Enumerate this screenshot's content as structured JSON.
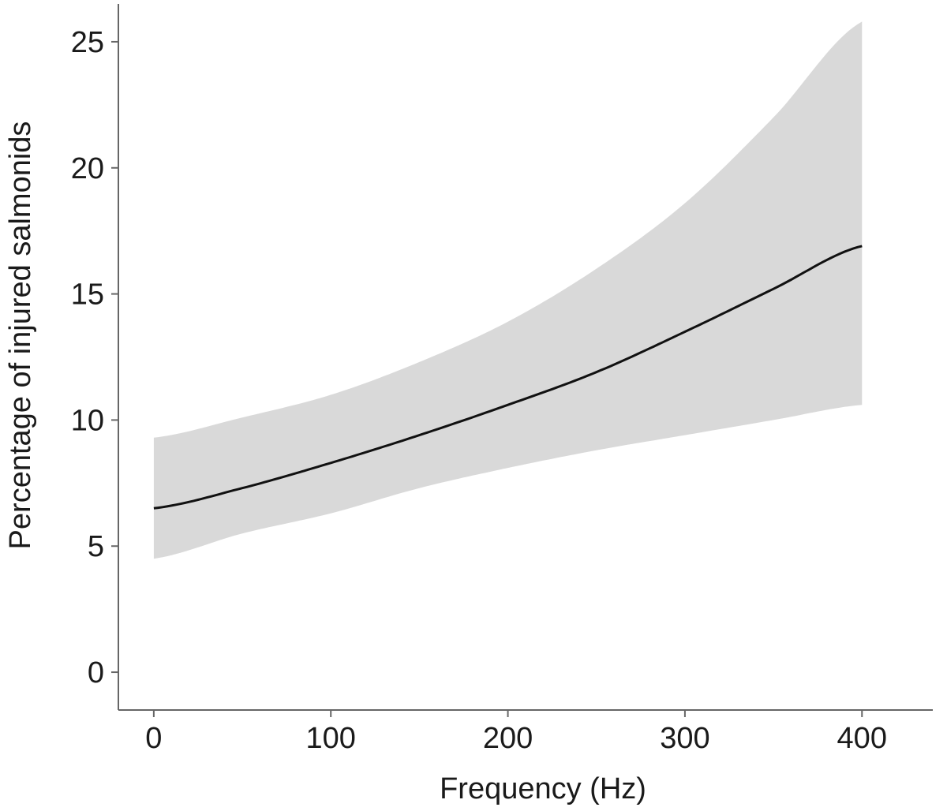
{
  "chart_data": {
    "type": "line",
    "title": "",
    "xlabel": "Frequency (Hz)",
    "ylabel": "Percentage of injured salmonids",
    "xlim": [
      -20,
      440
    ],
    "ylim": [
      -1.5,
      26.5
    ],
    "xticks": [
      0,
      100,
      200,
      300,
      400
    ],
    "yticks": [
      0,
      5,
      10,
      15,
      20,
      25
    ],
    "xtick_labels": [
      "0",
      "100",
      "200",
      "300",
      "400"
    ],
    "ytick_labels": [
      "0",
      "5",
      "10",
      "15",
      "20",
      "25"
    ],
    "grid": false,
    "legend": "none",
    "series": [
      {
        "x": [
          0,
          50,
          100,
          150,
          200,
          250,
          300,
          350,
          400
        ],
        "values": [
          6.5,
          7.3,
          8.3,
          9.4,
          10.6,
          11.9,
          13.5,
          15.2,
          16.9
        ],
        "lower": [
          4.5,
          5.5,
          6.3,
          7.3,
          8.1,
          8.8,
          9.4,
          10.0,
          10.6
        ],
        "upper": [
          9.3,
          10.1,
          11.0,
          12.3,
          13.9,
          16.0,
          18.6,
          22.0,
          25.8
        ]
      }
    ],
    "colors": {
      "line": "#111111",
      "band": "#d9d9d9",
      "axis": "#666666"
    }
  }
}
